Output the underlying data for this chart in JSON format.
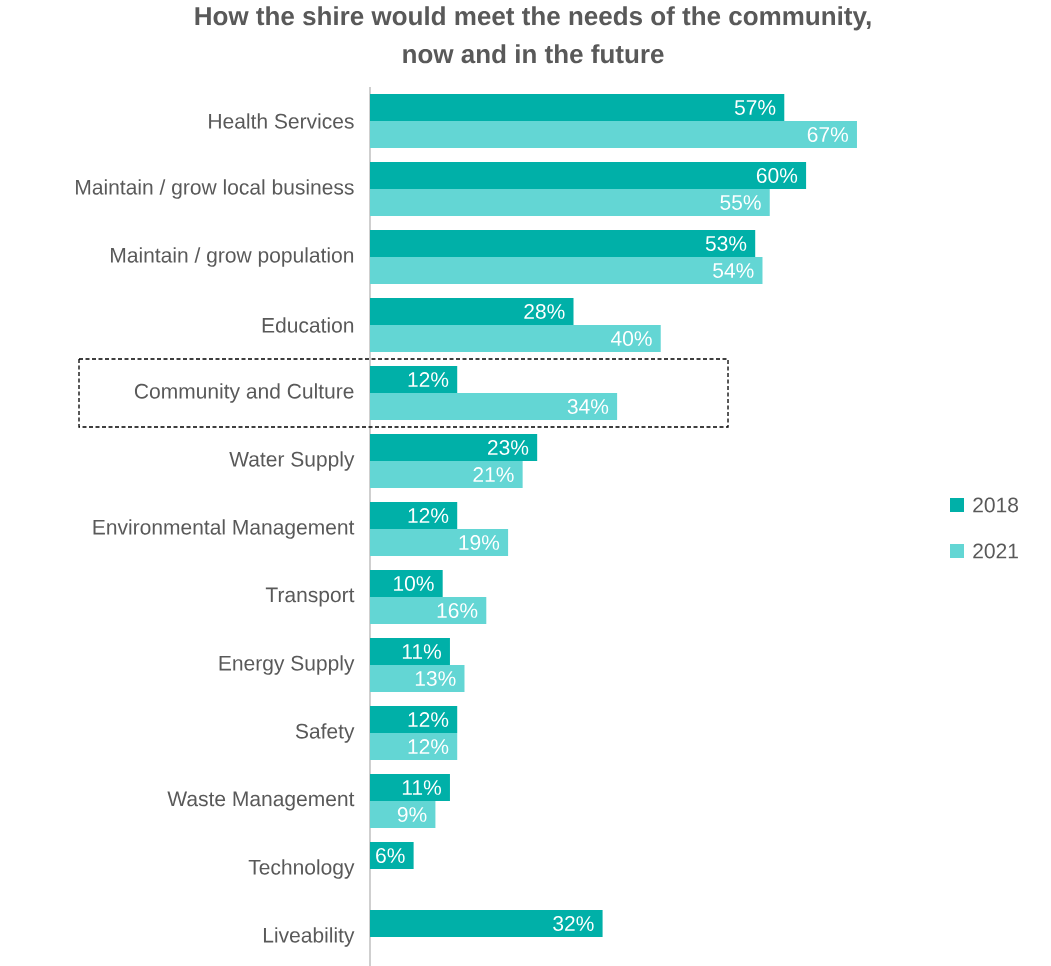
{
  "chart_data": {
    "type": "bar",
    "orientation": "horizontal",
    "title": "How the shire would meet the needs of the community,\nnow and in the future",
    "categories": [
      "Health Services",
      "Maintain / grow local business",
      "Maintain / grow population",
      "Education",
      "Community and Culture",
      "Water Supply",
      "Environmental Management",
      "Transport",
      "Energy Supply",
      "Safety",
      "Waste Management",
      "Technology",
      "Liveability"
    ],
    "series": [
      {
        "name": "2018",
        "color": "#00b0a8",
        "values": [
          57,
          60,
          53,
          28,
          12,
          23,
          12,
          10,
          11,
          12,
          11,
          6,
          32
        ],
        "value_labels": [
          "57%",
          "60%",
          "53%",
          "28%",
          "12%",
          "23%",
          "12%",
          "10%",
          "11%",
          "12%",
          "11%",
          "6%",
          "32%"
        ]
      },
      {
        "name": "2021",
        "color": "#63d6d4",
        "values": [
          67,
          55,
          54,
          40,
          34,
          21,
          19,
          16,
          13,
          12,
          9,
          null,
          null
        ],
        "value_labels": [
          "67%",
          "55%",
          "54%",
          "40%",
          "34%",
          "21%",
          "19%",
          "16%",
          "13%",
          "12%",
          "9%",
          null,
          null
        ]
      }
    ],
    "legend": "right"
  }
}
